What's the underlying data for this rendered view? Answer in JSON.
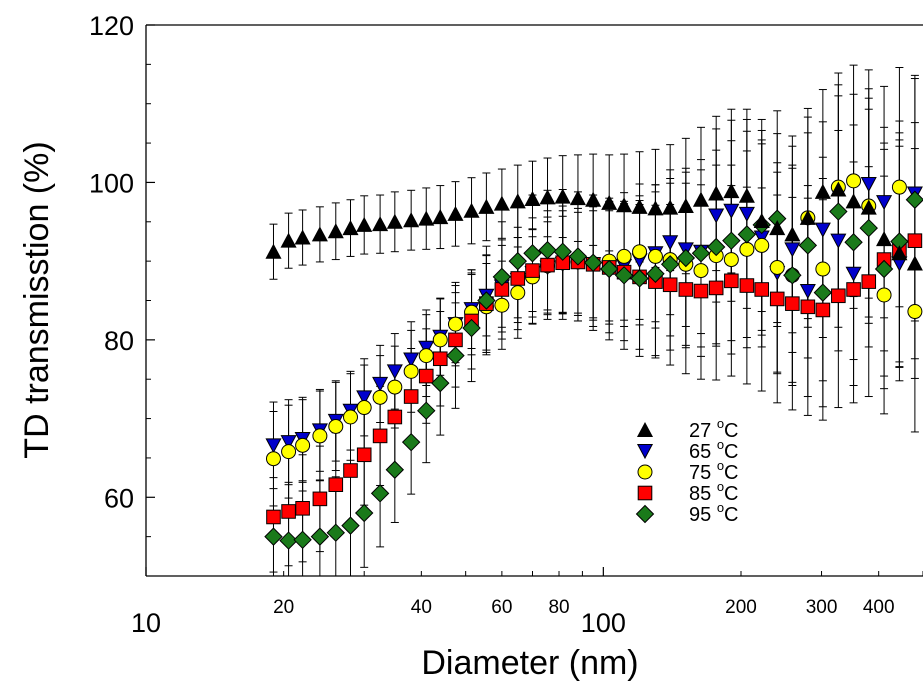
{
  "chart_data": {
    "type": "scatter",
    "title": "",
    "xlabel": "Diameter (nm)",
    "ylabel": "TD transmisstion (%)",
    "x_scale": "log",
    "xlim": [
      10,
      500
    ],
    "ylim": [
      50,
      120
    ],
    "y_ticks": [
      60,
      80,
      100,
      120
    ],
    "x_ticks_major": [
      10,
      100
    ],
    "x_ticks_minor": [
      20,
      40,
      60,
      80,
      200,
      300,
      400
    ],
    "error_bars": true,
    "legend_position": "lower-right",
    "legend_unit": "C",
    "legend_sup": "o",
    "series": [
      {
        "name": "27",
        "marker": "triangle-up",
        "color": "#000000",
        "x": [
          19.0,
          20.5,
          22.0,
          24.0,
          26.0,
          28.0,
          30.0,
          32.5,
          35.0,
          38.0,
          41.0,
          44.0,
          47.5,
          51.5,
          55.5,
          60.0,
          65.0,
          70.0,
          75.5,
          81.5,
          88.0,
          95.0,
          103.0,
          111.0,
          120.0,
          130.0,
          140.0,
          151.5,
          163.5,
          176.5,
          190.5,
          206.0,
          222.0,
          240.0,
          259.0,
          280.0,
          302.0,
          326.5,
          352.5,
          380.5,
          411.0,
          444.0,
          480.0
        ],
        "y": [
          91.2,
          92.6,
          93.0,
          93.4,
          93.8,
          94.2,
          94.6,
          94.7,
          95.0,
          95.2,
          95.4,
          95.6,
          96.0,
          96.4,
          96.9,
          97.3,
          97.6,
          97.9,
          98.1,
          98.2,
          98.0,
          97.8,
          97.4,
          97.1,
          96.9,
          96.7,
          96.8,
          97.0,
          97.8,
          98.6,
          98.9,
          98.3,
          95.1,
          94.2,
          93.4,
          95.5,
          98.8,
          99.1,
          97.6,
          96.8,
          92.8,
          91.0,
          89.7
        ],
        "err": [
          3.5,
          3.5,
          3.5,
          3.5,
          3.6,
          3.6,
          3.7,
          3.7,
          3.8,
          3.8,
          3.9,
          4.0,
          4.1,
          4.2,
          4.3,
          4.4,
          4.6,
          4.8,
          5.0,
          5.2,
          5.5,
          5.8,
          6.1,
          6.5,
          7.0,
          7.5,
          8.0,
          8.6,
          9.2,
          9.8,
          10.4,
          11.0,
          11.5,
          12.0,
          12.5,
          12.8,
          13.0,
          13.3,
          13.6,
          13.9,
          14.2,
          14.4,
          14.6
        ]
      },
      {
        "name": "65",
        "marker": "triangle-down",
        "color": "#0000cc",
        "x": [
          19.0,
          20.5,
          22.0,
          24.0,
          26.0,
          28.0,
          30.0,
          32.5,
          35.0,
          38.0,
          41.0,
          44.0,
          47.5,
          51.5,
          55.5,
          60.0,
          65.0,
          70.0,
          75.5,
          81.5,
          88.0,
          95.0,
          103.0,
          111.0,
          120.0,
          130.0,
          140.0,
          151.5,
          163.5,
          176.5,
          190.5,
          206.0,
          222.0,
          240.0,
          259.0,
          280.0,
          302.0,
          326.5,
          352.5,
          380.5,
          411.0,
          444.0,
          480.0
        ],
        "y": [
          66.6,
          67.0,
          67.4,
          68.5,
          69.7,
          71.0,
          72.7,
          74.4,
          76.0,
          77.5,
          79.0,
          80.4,
          82.0,
          83.9,
          85.6,
          86.8,
          87.6,
          88.5,
          89.2,
          89.6,
          89.8,
          89.6,
          89.2,
          89.4,
          90.1,
          91.0,
          92.4,
          91.5,
          91.2,
          95.8,
          96.4,
          96.0,
          93.0,
          88.5,
          91.5,
          86.2,
          94.0,
          92.6,
          88.4,
          99.8,
          97.5,
          89.7,
          98.6
        ],
        "err": [
          5.5,
          5.4,
          5.3,
          5.2,
          5.1,
          5.0,
          4.9,
          4.9,
          4.8,
          4.8,
          4.8,
          4.9,
          4.9,
          5.0,
          5.1,
          5.2,
          5.4,
          5.6,
          5.8,
          6.1,
          6.4,
          6.8,
          7.2,
          7.7,
          8.2,
          8.7,
          9.2,
          9.8,
          10.4,
          11.0,
          11.5,
          12.0,
          12.4,
          12.8,
          13.1,
          13.4,
          13.7,
          14.0,
          14.2,
          14.5,
          14.7,
          14.9,
          15.0
        ]
      },
      {
        "name": "75",
        "marker": "circle",
        "color": "#ffff00",
        "x": [
          19.0,
          20.5,
          22.0,
          24.0,
          26.0,
          28.0,
          30.0,
          32.5,
          35.0,
          38.0,
          41.0,
          44.0,
          47.5,
          51.5,
          55.5,
          60.0,
          65.0,
          70.0,
          75.5,
          81.5,
          88.0,
          95.0,
          103.0,
          111.0,
          120.0,
          130.0,
          140.0,
          151.5,
          163.5,
          176.5,
          190.5,
          206.0,
          222.0,
          240.0,
          259.0,
          280.0,
          302.0,
          326.5,
          352.5,
          380.5,
          411.0,
          444.0,
          480.0
        ],
        "y": [
          64.9,
          65.8,
          66.6,
          67.8,
          69.0,
          70.2,
          71.4,
          72.7,
          74.0,
          76.0,
          78.0,
          80.0,
          82.0,
          83.5,
          84.2,
          84.4,
          86.0,
          88.0,
          89.4,
          89.9,
          89.9,
          89.7,
          90.0,
          90.6,
          91.2,
          90.6,
          90.2,
          89.6,
          88.8,
          90.7,
          90.2,
          91.5,
          92.0,
          89.2,
          88.2,
          95.5,
          89.0,
          99.4,
          100.2,
          97.0,
          85.7,
          99.4,
          83.6
        ],
        "err": [
          6.0,
          5.9,
          5.8,
          5.7,
          5.6,
          5.5,
          5.4,
          5.3,
          5.2,
          5.2,
          5.2,
          5.2,
          5.3,
          5.4,
          5.5,
          5.6,
          5.8,
          6.0,
          6.2,
          6.5,
          6.8,
          7.2,
          7.6,
          8.1,
          8.6,
          9.1,
          9.7,
          10.3,
          10.9,
          11.5,
          12.0,
          12.5,
          12.9,
          13.3,
          13.6,
          13.9,
          14.2,
          14.5,
          14.7,
          14.9,
          15.1,
          15.2,
          15.3
        ]
      },
      {
        "name": "85",
        "marker": "square",
        "color": "#ff0000",
        "x": [
          19.0,
          20.5,
          22.0,
          24.0,
          26.0,
          28.0,
          30.0,
          32.5,
          35.0,
          38.0,
          41.0,
          44.0,
          47.5,
          51.5,
          55.5,
          60.0,
          65.0,
          70.0,
          75.5,
          81.5,
          88.0,
          95.0,
          103.0,
          111.0,
          120.0,
          130.0,
          140.0,
          151.5,
          163.5,
          176.5,
          190.5,
          206.0,
          222.0,
          240.0,
          259.0,
          280.0,
          302.0,
          326.5,
          352.5,
          380.5,
          411.0,
          444.0,
          480.0
        ],
        "y": [
          57.5,
          58.2,
          58.6,
          59.8,
          61.6,
          63.4,
          65.4,
          67.8,
          70.2,
          72.8,
          75.4,
          77.6,
          80.0,
          82.4,
          84.6,
          86.4,
          87.8,
          88.8,
          89.5,
          89.8,
          89.9,
          89.6,
          89.2,
          88.6,
          88.0,
          87.4,
          87.0,
          86.4,
          86.2,
          86.6,
          87.5,
          86.9,
          86.4,
          85.2,
          84.6,
          84.2,
          83.8,
          85.6,
          86.4,
          87.4,
          90.2,
          91.4,
          92.6
        ],
        "err": [
          7.0,
          6.9,
          6.8,
          6.7,
          6.6,
          6.5,
          6.4,
          6.3,
          6.2,
          6.1,
          6.0,
          6.0,
          6.0,
          6.1,
          6.2,
          6.3,
          6.5,
          6.7,
          6.9,
          7.2,
          7.5,
          7.9,
          8.3,
          8.7,
          9.2,
          9.7,
          10.2,
          10.7,
          11.2,
          11.7,
          12.1,
          12.5,
          12.9,
          13.2,
          13.5,
          13.8,
          14.0,
          14.2,
          14.4,
          14.6,
          14.8,
          14.9,
          15.0
        ]
      },
      {
        "name": "95",
        "marker": "diamond",
        "color": "#1a7a1a",
        "x": [
          19.0,
          20.5,
          22.0,
          24.0,
          26.0,
          28.0,
          30.0,
          32.5,
          35.0,
          38.0,
          41.0,
          44.0,
          47.5,
          51.5,
          55.5,
          60.0,
          65.0,
          70.0,
          75.5,
          81.5,
          88.0,
          95.0,
          103.0,
          111.0,
          120.0,
          130.0,
          140.0,
          151.5,
          163.5,
          176.5,
          190.5,
          206.0,
          222.0,
          240.0,
          259.0,
          280.0,
          302.0,
          326.5,
          352.5,
          380.5,
          411.0,
          444.0,
          480.0
        ],
        "y": [
          55.0,
          54.5,
          54.6,
          55.0,
          55.5,
          56.4,
          58.0,
          60.5,
          63.5,
          67.0,
          71.0,
          74.5,
          78.0,
          81.5,
          85.0,
          88.0,
          90.0,
          91.0,
          91.4,
          91.2,
          90.6,
          89.8,
          89.0,
          88.2,
          87.8,
          88.4,
          89.6,
          90.4,
          91.0,
          91.8,
          92.6,
          93.4,
          94.6,
          95.4,
          88.2,
          92.0,
          86.0,
          96.3,
          92.4,
          94.2,
          89.0,
          92.5,
          97.8
        ],
        "err": [
          7.5,
          7.4,
          7.3,
          7.2,
          7.1,
          7.0,
          6.9,
          6.8,
          6.7,
          6.6,
          6.6,
          6.6,
          6.7,
          6.8,
          6.9,
          7.0,
          7.2,
          7.4,
          7.6,
          7.9,
          8.2,
          8.6,
          9.0,
          9.4,
          9.9,
          10.4,
          10.9,
          11.4,
          11.9,
          12.3,
          12.7,
          13.1,
          13.4,
          13.7,
          14.0,
          14.3,
          14.5,
          14.7,
          14.9,
          15.1,
          15.2,
          15.3,
          15.4
        ]
      }
    ]
  }
}
